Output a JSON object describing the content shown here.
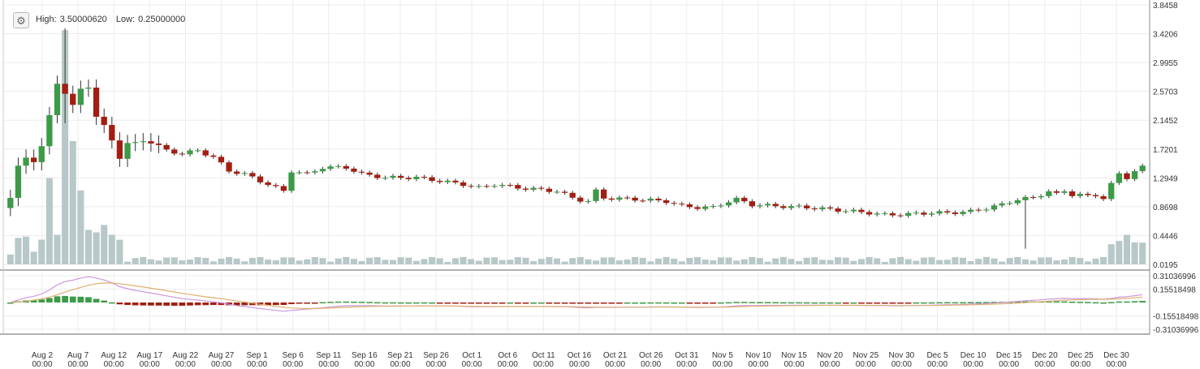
{
  "legend": {
    "high_label": "High:",
    "high_value": "3.50000620",
    "low_label": "Low:",
    "low_value": "0.25000000"
  },
  "settings_icon": "gear-icon",
  "colors": {
    "up": "#3d9a48",
    "down": "#a31e12",
    "volume": "#b8c8c8",
    "macd_line": "#cc99dd",
    "signal_line": "#e0b070",
    "grid": "#ececec",
    "axis": "#555555"
  },
  "chart_data": {
    "type": "candlestick",
    "price_axis": {
      "range": [
        0.0195,
        3.8458
      ],
      "ticks": [
        "3.8458",
        "3.4206",
        "2.9955",
        "2.5703",
        "2.1452",
        "1.7201",
        "1.2949",
        "0.8698",
        "0.4446",
        "0.0195"
      ]
    },
    "macd_axis": {
      "range": [
        -0.31036996,
        0.31036996
      ],
      "ticks": [
        "0.31036996",
        "0.15518498",
        "-0.15518498",
        "-0.31036996"
      ]
    },
    "x_axis": {
      "ticks": [
        [
          "Aug 2",
          "00:00"
        ],
        [
          "Aug 7",
          "00:00"
        ],
        [
          "Aug 12",
          "00:00"
        ],
        [
          "Aug 17",
          "00:00"
        ],
        [
          "Aug 22",
          "00:00"
        ],
        [
          "Aug 27",
          "00:00"
        ],
        [
          "Sep 1",
          "00:00"
        ],
        [
          "Sep 6",
          "00:00"
        ],
        [
          "Sep 11",
          "00:00"
        ],
        [
          "Sep 16",
          "00:00"
        ],
        [
          "Sep 21",
          "00:00"
        ],
        [
          "Sep 26",
          "00:00"
        ],
        [
          "Oct 1",
          "00:00"
        ],
        [
          "Oct 6",
          "00:00"
        ],
        [
          "Oct 11",
          "00:00"
        ],
        [
          "Oct 16",
          "00:00"
        ],
        [
          "Oct 21",
          "00:00"
        ],
        [
          "Oct 26",
          "00:00"
        ],
        [
          "Oct 31",
          "00:00"
        ],
        [
          "Nov 5",
          "00:00"
        ],
        [
          "Nov 10",
          "00:00"
        ],
        [
          "Nov 15",
          "00:00"
        ],
        [
          "Nov 20",
          "00:00"
        ],
        [
          "Nov 25",
          "00:00"
        ],
        [
          "Nov 30",
          "00:00"
        ],
        [
          "Dec 5",
          "00:00"
        ],
        [
          "Dec 10",
          "00:00"
        ],
        [
          "Dec 15",
          "00:00"
        ],
        [
          "Dec 20",
          "00:00"
        ],
        [
          "Dec 25",
          "00:00"
        ],
        [
          "Dec 30",
          "00:00"
        ]
      ]
    },
    "close_key": [
      [
        0,
        1.0
      ],
      [
        1,
        1.45
      ],
      [
        2,
        1.6
      ],
      [
        3,
        1.55
      ],
      [
        4,
        1.75
      ],
      [
        5,
        2.2
      ],
      [
        6,
        2.7
      ],
      [
        7,
        2.55
      ],
      [
        8,
        2.35
      ],
      [
        9,
        2.6
      ],
      [
        10,
        2.65
      ],
      [
        11,
        2.2
      ],
      [
        12,
        2.05
      ],
      [
        13,
        1.85
      ],
      [
        14,
        1.6
      ],
      [
        15,
        1.8
      ],
      [
        16,
        1.8
      ],
      [
        17,
        1.85
      ],
      [
        18,
        1.82
      ],
      [
        20,
        1.7
      ],
      [
        22,
        1.65
      ],
      [
        24,
        1.7
      ],
      [
        26,
        1.6
      ],
      [
        28,
        1.4
      ],
      [
        30,
        1.35
      ],
      [
        33,
        1.2
      ],
      [
        35,
        1.1
      ],
      [
        36,
        1.4
      ],
      [
        38,
        1.35
      ],
      [
        40,
        1.45
      ],
      [
        43,
        1.45
      ],
      [
        45,
        1.35
      ],
      [
        48,
        1.3
      ],
      [
        52,
        1.3
      ],
      [
        55,
        1.25
      ],
      [
        58,
        1.2
      ],
      [
        60,
        1.15
      ],
      [
        62,
        1.2
      ],
      [
        65,
        1.15
      ],
      [
        68,
        1.12
      ],
      [
        70,
        1.1
      ],
      [
        72,
        1.0
      ],
      [
        73,
        0.97
      ],
      [
        74,
        0.95
      ],
      [
        75,
        1.1
      ],
      [
        76,
        1.0
      ],
      [
        80,
        0.98
      ],
      [
        84,
        0.95
      ],
      [
        86,
        0.88
      ],
      [
        88,
        0.86
      ],
      [
        90,
        0.86
      ],
      [
        92,
        0.95
      ],
      [
        93,
        0.98
      ],
      [
        95,
        0.9
      ],
      [
        98,
        0.88
      ],
      [
        102,
        0.86
      ],
      [
        105,
        0.83
      ],
      [
        108,
        0.8
      ],
      [
        110,
        0.78
      ],
      [
        112,
        0.75
      ],
      [
        115,
        0.76
      ],
      [
        118,
        0.78
      ],
      [
        120,
        0.78
      ],
      [
        123,
        0.8
      ],
      [
        125,
        0.85
      ],
      [
        127,
        0.9
      ],
      [
        129,
        0.98
      ],
      [
        131,
        1.0
      ],
      [
        133,
        1.1
      ],
      [
        134,
        1.05
      ],
      [
        135,
        1.1
      ],
      [
        136,
        1.05
      ],
      [
        137,
        1.05
      ],
      [
        138,
        1.02
      ],
      [
        139,
        1.04
      ],
      [
        140,
        1.0
      ],
      [
        141,
        1.2
      ],
      [
        142,
        1.35
      ],
      [
        143,
        1.3
      ],
      [
        144,
        1.4
      ],
      [
        145,
        1.45
      ]
    ],
    "special_bars": {
      "7": {
        "high": 3.5000062,
        "low": 2.1,
        "volume": 0.95
      },
      "8": {
        "volume": 0.5
      },
      "6": {
        "volume": 0.12
      },
      "5": {
        "volume": 0.35
      },
      "9": {
        "volume": 0.3
      },
      "10": {
        "volume": 0.14
      },
      "11": {
        "volume": 0.13
      },
      "12": {
        "volume": 0.16
      },
      "13": {
        "volume": 0.12
      },
      "14": {
        "volume": 0.1
      },
      "130": {
        "low": 0.25
      }
    }
  }
}
